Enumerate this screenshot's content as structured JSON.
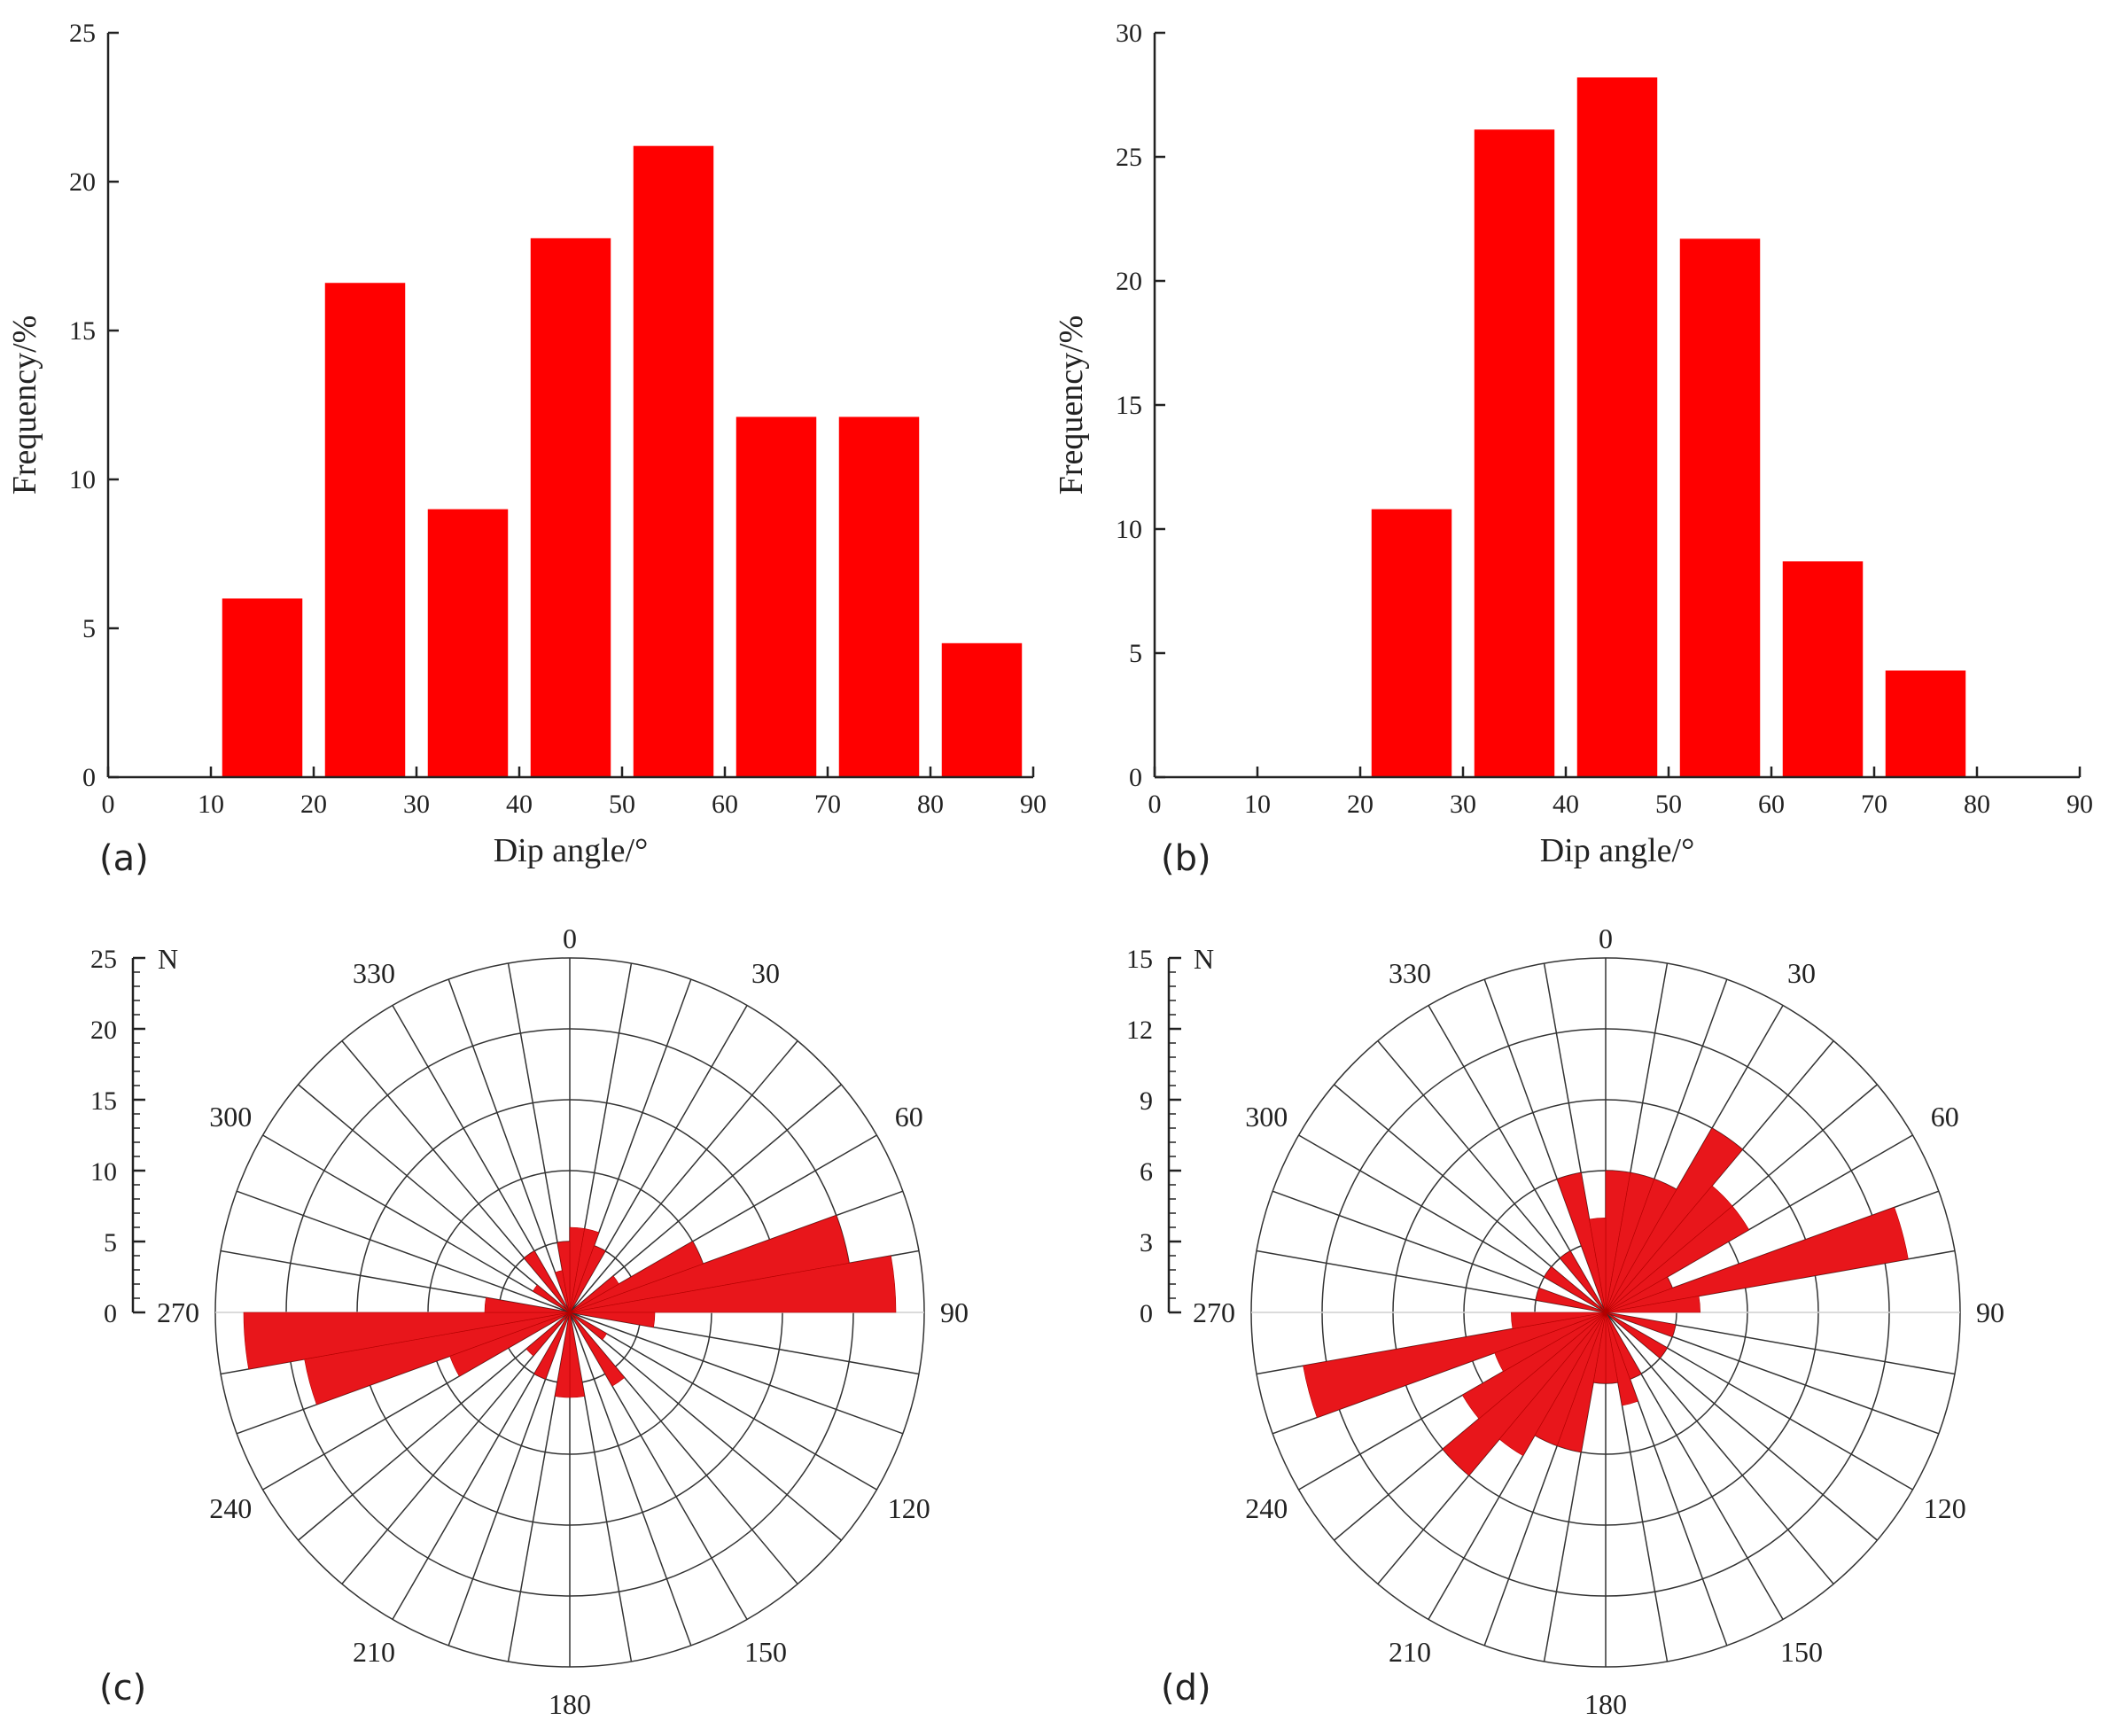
{
  "figure": {
    "panel_labels": [
      "(a)",
      "(b)",
      "(c)",
      "(d)"
    ]
  },
  "chart_data": [
    {
      "id": "a",
      "type": "bar",
      "xlabel": "Dip angle/°",
      "ylabel": "Frequency/%",
      "xlim": [
        0,
        90
      ],
      "ylim": [
        0,
        25
      ],
      "xticks": [
        0,
        10,
        20,
        30,
        40,
        50,
        60,
        70,
        80,
        90
      ],
      "yticks": [
        0,
        5,
        10,
        15,
        20,
        25
      ],
      "bins": [
        [
          10,
          20
        ],
        [
          20,
          30
        ],
        [
          30,
          40
        ],
        [
          40,
          50
        ],
        [
          50,
          60
        ],
        [
          60,
          70
        ],
        [
          70,
          80
        ],
        [
          80,
          90
        ]
      ],
      "values": [
        6.0,
        16.6,
        9.0,
        18.1,
        21.2,
        12.1,
        12.1,
        4.5
      ],
      "color": "#ff0000"
    },
    {
      "id": "b",
      "type": "bar",
      "xlabel": "Dip angle/°",
      "ylabel": "Frequency/%",
      "xlim": [
        0,
        90
      ],
      "ylim": [
        0,
        30
      ],
      "xticks": [
        0,
        10,
        20,
        30,
        40,
        50,
        60,
        70,
        80,
        90
      ],
      "yticks": [
        0,
        5,
        10,
        15,
        20,
        25,
        30
      ],
      "bins": [
        [
          20,
          30
        ],
        [
          30,
          40
        ],
        [
          40,
          50
        ],
        [
          50,
          60
        ],
        [
          60,
          70
        ],
        [
          70,
          80
        ]
      ],
      "values": [
        10.8,
        26.1,
        28.2,
        21.7,
        8.7,
        4.3
      ],
      "color": "#ff0000"
    },
    {
      "id": "c",
      "type": "rose",
      "radial_max": 25,
      "radial_ticks": [
        0,
        5,
        10,
        15,
        20,
        25
      ],
      "north_label": "N",
      "angle_labels": [
        "0",
        "30",
        "60",
        "90",
        "120",
        "150",
        "180",
        "210",
        "240",
        "270",
        "300",
        "330"
      ],
      "sector_width_deg": 10,
      "sectors": [
        {
          "start": 0,
          "value": 6
        },
        {
          "start": 10,
          "value": 6
        },
        {
          "start": 20,
          "value": 5
        },
        {
          "start": 50,
          "value": 4
        },
        {
          "start": 60,
          "value": 10
        },
        {
          "start": 70,
          "value": 20
        },
        {
          "start": 80,
          "value": 23
        },
        {
          "start": 90,
          "value": 6
        },
        {
          "start": 120,
          "value": 3
        },
        {
          "start": 140,
          "value": 6
        },
        {
          "start": 170,
          "value": 6
        },
        {
          "start": 180,
          "value": 6
        },
        {
          "start": 200,
          "value": 5
        },
        {
          "start": 220,
          "value": 4
        },
        {
          "start": 240,
          "value": 9
        },
        {
          "start": 250,
          "value": 19
        },
        {
          "start": 260,
          "value": 23
        },
        {
          "start": 270,
          "value": 6
        },
        {
          "start": 300,
          "value": 3
        },
        {
          "start": 320,
          "value": 5
        },
        {
          "start": 340,
          "value": 3
        },
        {
          "start": 350,
          "value": 5
        }
      ],
      "color": "#e8161b"
    },
    {
      "id": "d",
      "type": "rose",
      "radial_max": 15,
      "radial_ticks": [
        0,
        3,
        6,
        9,
        12,
        15
      ],
      "north_label": "N",
      "angle_labels": [
        "0",
        "30",
        "60",
        "90",
        "120",
        "150",
        "180",
        "210",
        "240",
        "270",
        "300",
        "330"
      ],
      "sector_width_deg": 10,
      "sectors": [
        {
          "start": 0,
          "value": 6
        },
        {
          "start": 10,
          "value": 6
        },
        {
          "start": 20,
          "value": 6
        },
        {
          "start": 30,
          "value": 9
        },
        {
          "start": 40,
          "value": 7
        },
        {
          "start": 50,
          "value": 7
        },
        {
          "start": 60,
          "value": 3
        },
        {
          "start": 70,
          "value": 13
        },
        {
          "start": 80,
          "value": 4
        },
        {
          "start": 100,
          "value": 3
        },
        {
          "start": 120,
          "value": 3
        },
        {
          "start": 150,
          "value": 3
        },
        {
          "start": 160,
          "value": 4
        },
        {
          "start": 170,
          "value": 3
        },
        {
          "start": 180,
          "value": 3
        },
        {
          "start": 190,
          "value": 6
        },
        {
          "start": 200,
          "value": 6
        },
        {
          "start": 210,
          "value": 7
        },
        {
          "start": 220,
          "value": 9
        },
        {
          "start": 230,
          "value": 7
        },
        {
          "start": 240,
          "value": 5
        },
        {
          "start": 250,
          "value": 13
        },
        {
          "start": 260,
          "value": 4
        },
        {
          "start": 280,
          "value": 3
        },
        {
          "start": 300,
          "value": 3
        },
        {
          "start": 320,
          "value": 3
        },
        {
          "start": 340,
          "value": 6
        },
        {
          "start": 350,
          "value": 4
        }
      ],
      "color": "#e8161b"
    }
  ]
}
